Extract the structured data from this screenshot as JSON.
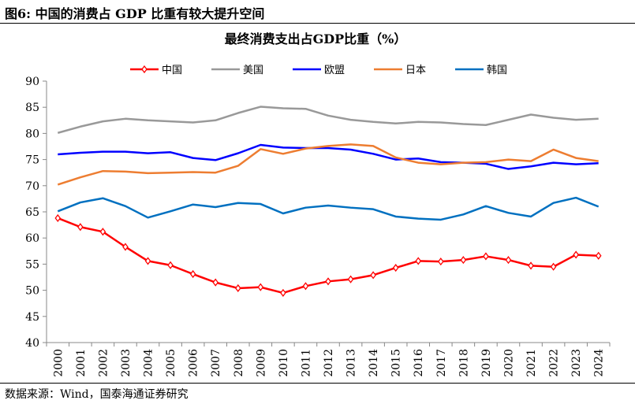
{
  "figure_title": "图6:  中国的消费占 GDP 比重有较大提升空间",
  "source": "数据来源：Wind，国泰海通证券研究",
  "chart_data": {
    "type": "line",
    "title": "最终消费支出占GDP比重（%）",
    "xlabel": "",
    "ylabel": "",
    "ylim": [
      40,
      90
    ],
    "yticks": [
      40,
      45,
      50,
      55,
      60,
      65,
      70,
      75,
      80,
      85,
      90
    ],
    "grid": false,
    "legend": "top",
    "x": [
      "2000",
      "2001",
      "2002",
      "2003",
      "2004",
      "2005",
      "2006",
      "2007",
      "2008",
      "2009",
      "2010",
      "2011",
      "2012",
      "2013",
      "2014",
      "2015",
      "2016",
      "2017",
      "2018",
      "2019",
      "2020",
      "2021",
      "2022",
      "2023",
      "2024"
    ],
    "series": [
      {
        "name": "中国",
        "color": "#FF0000",
        "marker": "diamond",
        "values": [
          63.8,
          62.1,
          61.2,
          58.3,
          55.6,
          54.8,
          53.1,
          51.5,
          50.4,
          50.6,
          49.5,
          50.8,
          51.7,
          52.1,
          52.9,
          54.3,
          55.6,
          55.5,
          55.8,
          56.5,
          55.8,
          54.7,
          54.5,
          56.8,
          56.6
        ]
      },
      {
        "name": "美国",
        "color": "#999999",
        "values": [
          80.1,
          81.3,
          82.3,
          82.8,
          82.5,
          82.3,
          82.1,
          82.5,
          83.9,
          85.1,
          84.8,
          84.7,
          83.4,
          82.6,
          82.2,
          81.9,
          82.2,
          82.1,
          81.8,
          81.6,
          82.6,
          83.6,
          83.0,
          82.6,
          82.8
        ]
      },
      {
        "name": "欧盟",
        "color": "#0000FF",
        "values": [
          76.0,
          76.3,
          76.5,
          76.5,
          76.2,
          76.4,
          75.3,
          74.9,
          76.2,
          77.8,
          77.3,
          77.2,
          77.2,
          76.9,
          76.1,
          75.0,
          75.2,
          74.5,
          74.4,
          74.2,
          73.2,
          73.7,
          74.4,
          74.1,
          74.3
        ]
      },
      {
        "name": "日本",
        "color": "#ED7D31",
        "values": [
          70.2,
          71.6,
          72.8,
          72.7,
          72.4,
          72.5,
          72.6,
          72.5,
          73.8,
          77.0,
          76.1,
          77.1,
          77.6,
          77.9,
          77.6,
          75.4,
          74.4,
          74.1,
          74.4,
          74.5,
          75.0,
          74.7,
          76.9,
          75.3,
          74.7
        ]
      },
      {
        "name": "韩国",
        "color": "#0070C0",
        "values": [
          65.1,
          66.8,
          67.6,
          66.1,
          63.9,
          65.1,
          66.4,
          65.9,
          66.7,
          66.5,
          64.7,
          65.8,
          66.2,
          65.8,
          65.5,
          64.1,
          63.7,
          63.5,
          64.5,
          66.1,
          64.8,
          64.1,
          66.7,
          67.7,
          66.0
        ]
      }
    ]
  }
}
